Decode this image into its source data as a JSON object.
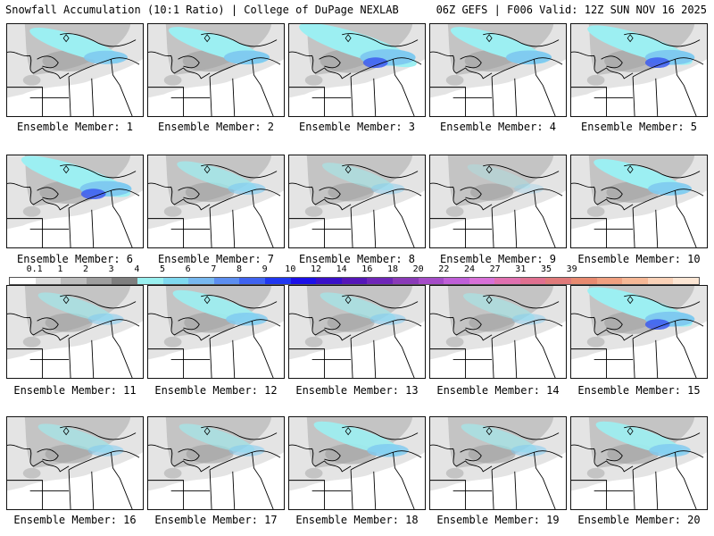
{
  "header": {
    "title_left": "Snowfall Accumulation (10:1 Ratio) | College of DuPage NEXLAB",
    "title_right": "06Z GEFS | F006 Valid: 12Z SUN NOV 16 2025"
  },
  "members": [
    {
      "label": "Ensemble Member: 1",
      "intensity": 1.0
    },
    {
      "label": "Ensemble Member: 2",
      "intensity": 1.1
    },
    {
      "label": "Ensemble Member: 3",
      "intensity": 1.6
    },
    {
      "label": "Ensemble Member: 4",
      "intensity": 1.1
    },
    {
      "label": "Ensemble Member: 5",
      "intensity": 1.3
    },
    {
      "label": "Ensemble Member: 6",
      "intensity": 1.4
    },
    {
      "label": "Ensemble Member: 7",
      "intensity": 0.7
    },
    {
      "label": "Ensemble Member: 8",
      "intensity": 0.5
    },
    {
      "label": "Ensemble Member: 9",
      "intensity": 0.3
    },
    {
      "label": "Ensemble Member: 10",
      "intensity": 1.0
    },
    {
      "label": "Ensemble Member: 11",
      "intensity": 0.6
    },
    {
      "label": "Ensemble Member: 12",
      "intensity": 0.9
    },
    {
      "label": "Ensemble Member: 13",
      "intensity": 0.6
    },
    {
      "label": "Ensemble Member: 14",
      "intensity": 0.5
    },
    {
      "label": "Ensemble Member: 15",
      "intensity": 1.3
    },
    {
      "label": "Ensemble Member: 16",
      "intensity": 0.6
    },
    {
      "label": "Ensemble Member: 17",
      "intensity": 0.6
    },
    {
      "label": "Ensemble Member: 18",
      "intensity": 0.9
    },
    {
      "label": "Ensemble Member: 19",
      "intensity": 0.6
    },
    {
      "label": "Ensemble Member: 20",
      "intensity": 0.9
    }
  ],
  "legend": {
    "labels": [
      "0.1",
      "1",
      "2",
      "3",
      "4",
      "5",
      "6",
      "7",
      "8",
      "9",
      "10",
      "12",
      "14",
      "16",
      "18",
      "20",
      "22",
      "24",
      "27",
      "31",
      "35",
      "39"
    ],
    "colors": [
      "#ffffff",
      "#dcdcdc",
      "#bdbdbd",
      "#9e9e9e",
      "#7f7f7f",
      "#99f0f0",
      "#7fd9f0",
      "#77b8f0",
      "#5c8ef0",
      "#3f63f0",
      "#2037f0",
      "#1c10e8",
      "#3a10c8",
      "#5516b8",
      "#6f26b8",
      "#8a3ab8",
      "#a54cc8",
      "#bf5fd8",
      "#d870d8",
      "#e070b0",
      "#e07090",
      "#e07a7a",
      "#e88a70",
      "#f0a080",
      "#f6b896",
      "#fad2b8",
      "#fce6d4"
    ]
  },
  "colors": {
    "land_light": "#e4e4e4",
    "land_mid": "#c4c4c4",
    "land_dark": "#9a9a9a",
    "snow_light": "#9ceff2",
    "snow_mid": "#7fcaf0",
    "snow_heavy": "#3d5cf0",
    "line": "#000000"
  }
}
